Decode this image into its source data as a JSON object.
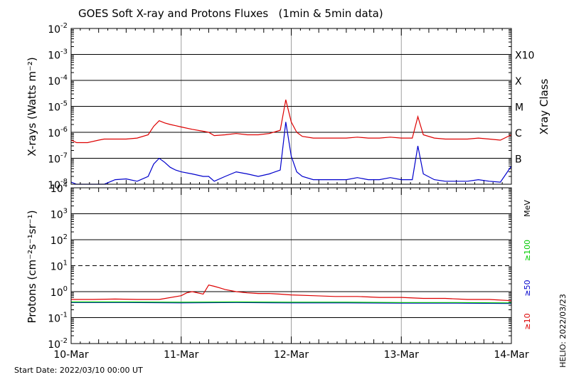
{
  "chart_data": [
    {
      "type": "line",
      "title": "GOES Soft X-ray and Protons Fluxes   (1min & 5min data)",
      "ylabel": "X-rays (Watts m⁻²)",
      "yscale": "log",
      "ylim": [
        1e-08,
        0.01
      ],
      "ytick_labels": [
        {
          "mant": "10",
          "exp": "-2"
        },
        {
          "mant": "10",
          "exp": "-3"
        },
        {
          "mant": "10",
          "exp": "-4"
        },
        {
          "mant": "10",
          "exp": "-5"
        },
        {
          "mant": "10",
          "exp": "-6"
        },
        {
          "mant": "10",
          "exp": "-7"
        },
        {
          "mant": "10",
          "exp": "-8"
        }
      ],
      "right_axis_label": "Xray Class",
      "xray_classes": [
        "X10",
        "X",
        "M",
        "C",
        "B"
      ],
      "grid": true,
      "series": [
        {
          "color": "#dd0000",
          "x": [
            0.0,
            0.05,
            0.15,
            0.25,
            0.3,
            0.4,
            0.5,
            0.6,
            0.7,
            0.75,
            0.8,
            0.85,
            0.9,
            0.95,
            1.0,
            1.1,
            1.2,
            1.25,
            1.3,
            1.4,
            1.5,
            1.6,
            1.7,
            1.8,
            1.9,
            1.95,
            2.0,
            2.05,
            2.1,
            2.2,
            2.3,
            2.4,
            2.5,
            2.6,
            2.7,
            2.8,
            2.9,
            3.0,
            3.1,
            3.15,
            3.2,
            3.3,
            3.4,
            3.5,
            3.6,
            3.7,
            3.8,
            3.9,
            4.0
          ],
          "y": [
            5e-07,
            4e-07,
            4e-07,
            5e-07,
            5.5e-07,
            5.5e-07,
            5.5e-07,
            6e-07,
            8e-07,
            1.7e-06,
            2.8e-06,
            2.3e-06,
            2e-06,
            1.8e-06,
            1.6e-06,
            1.3e-06,
            1.1e-06,
            1e-06,
            7.5e-07,
            8e-07,
            9e-07,
            8e-07,
            8e-07,
            9e-07,
            1.2e-06,
            1.8e-05,
            2.5e-06,
            1e-06,
            7e-07,
            6e-07,
            6e-07,
            6e-07,
            6e-07,
            6.5e-07,
            6e-07,
            6e-07,
            6.5e-07,
            6e-07,
            6e-07,
            4e-06,
            8e-07,
            6e-07,
            5.5e-07,
            5.5e-07,
            5.5e-07,
            6e-07,
            5.5e-07,
            5e-07,
            8e-07
          ]
        },
        {
          "color": "#0000cc",
          "x": [
            0.0,
            0.05,
            0.15,
            0.25,
            0.3,
            0.4,
            0.5,
            0.6,
            0.7,
            0.75,
            0.8,
            0.85,
            0.9,
            0.95,
            1.0,
            1.1,
            1.2,
            1.25,
            1.3,
            1.4,
            1.5,
            1.6,
            1.7,
            1.8,
            1.9,
            1.95,
            2.0,
            2.05,
            2.1,
            2.2,
            2.3,
            2.4,
            2.5,
            2.6,
            2.7,
            2.8,
            2.9,
            3.0,
            3.1,
            3.15,
            3.2,
            3.3,
            3.4,
            3.5,
            3.6,
            3.7,
            3.8,
            3.9,
            4.0
          ],
          "y": [
            1.2e-08,
            1e-08,
            1e-08,
            1e-08,
            1e-08,
            1.5e-08,
            1.6e-08,
            1.3e-08,
            2e-08,
            6e-08,
            1e-07,
            7e-08,
            4.5e-08,
            3.5e-08,
            3e-08,
            2.5e-08,
            2e-08,
            2e-08,
            1.3e-08,
            2e-08,
            3e-08,
            2.5e-08,
            2e-08,
            2.5e-08,
            3.5e-08,
            2.5e-06,
            1.2e-07,
            3e-08,
            2e-08,
            1.5e-08,
            1.5e-08,
            1.5e-08,
            1.5e-08,
            1.8e-08,
            1.5e-08,
            1.5e-08,
            1.8e-08,
            1.5e-08,
            1.5e-08,
            3e-07,
            2.5e-08,
            1.5e-08,
            1.3e-08,
            1.3e-08,
            1.3e-08,
            1.5e-08,
            1.3e-08,
            1.2e-08,
            5e-08
          ]
        }
      ]
    },
    {
      "type": "line",
      "ylabel": "Protons (cm⁻²s⁻¹sr⁻¹)",
      "yscale": "log",
      "ylim": [
        0.01,
        10000
      ],
      "ytick_labels": [
        {
          "mant": "10",
          "exp": "4"
        },
        {
          "mant": "10",
          "exp": "3"
        },
        {
          "mant": "10",
          "exp": "2"
        },
        {
          "mant": "10",
          "exp": "1"
        },
        {
          "mant": "10",
          "exp": "0"
        },
        {
          "mant": "10",
          "exp": "-1"
        },
        {
          "mant": "10",
          "exp": "-2"
        }
      ],
      "dashed_threshold": 10,
      "unit_label": "MeV",
      "grid": true,
      "series": [
        {
          "name": "≥10",
          "color": "#dd0000",
          "x": [
            0.0,
            0.2,
            0.4,
            0.6,
            0.8,
            1.0,
            1.05,
            1.1,
            1.2,
            1.25,
            1.3,
            1.35,
            1.4,
            1.5,
            1.6,
            1.7,
            1.8,
            1.9,
            2.0,
            2.2,
            2.4,
            2.6,
            2.8,
            3.0,
            3.2,
            3.4,
            3.6,
            3.8,
            4.0
          ],
          "y": [
            0.5,
            0.5,
            0.52,
            0.5,
            0.5,
            0.7,
            0.9,
            1.0,
            0.8,
            1.8,
            1.6,
            1.4,
            1.2,
            1.0,
            0.9,
            0.85,
            0.85,
            0.8,
            0.75,
            0.7,
            0.65,
            0.65,
            0.6,
            0.6,
            0.55,
            0.55,
            0.5,
            0.5,
            0.45
          ]
        },
        {
          "name": "≥50",
          "color": "#0000cc",
          "x": [
            0.0,
            0.5,
            1.0,
            1.5,
            2.0,
            2.5,
            3.0,
            3.5,
            4.0
          ],
          "y": [
            0.38,
            0.38,
            0.37,
            0.38,
            0.37,
            0.37,
            0.36,
            0.36,
            0.35
          ]
        },
        {
          "name": "≥100",
          "color": "#00cc00",
          "x": [
            0.0,
            0.5,
            1.0,
            1.5,
            2.0,
            2.5,
            3.0,
            3.5,
            4.0
          ],
          "y": [
            0.4,
            0.4,
            0.39,
            0.4,
            0.39,
            0.39,
            0.38,
            0.38,
            0.37
          ]
        }
      ],
      "x_ticks": [
        "10-Mar",
        "11-Mar",
        "12-Mar",
        "13-Mar",
        "14-Mar"
      ],
      "x_start_date": "2022/03/10"
    }
  ],
  "footer": {
    "start_date": "Start Date: 2022/03/10 00:00 UT",
    "credit": "HELIO: 2022/03/23"
  }
}
